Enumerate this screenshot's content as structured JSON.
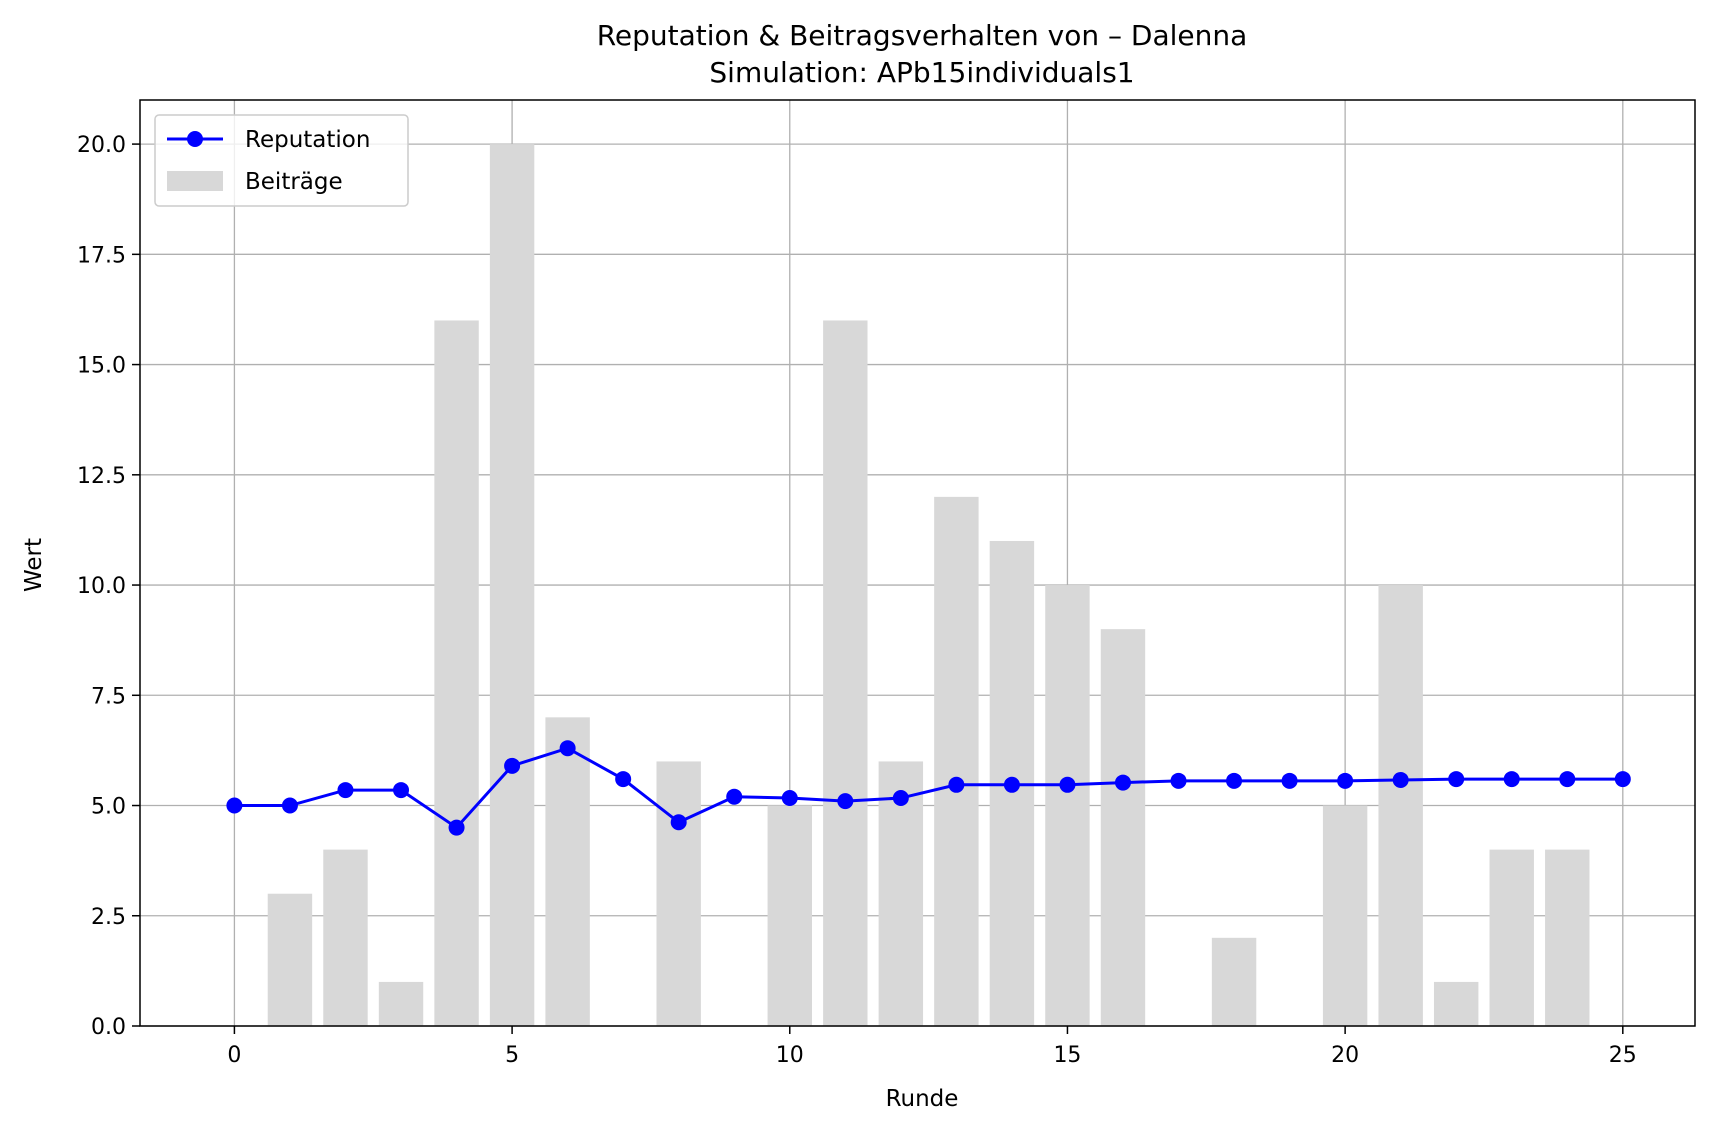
{
  "chart_data": {
    "type": "bar",
    "title": "Reputation & Beitragsverhalten von – Dalenna",
    "subtitle": "Simulation: APb15individuals1",
    "xlabel": "Runde",
    "ylabel": "Wert",
    "xlim": [
      -1.7,
      26.3
    ],
    "ylim": [
      0,
      21
    ],
    "xticks": [
      0,
      5,
      10,
      15,
      20,
      25
    ],
    "yticks": [
      0.0,
      2.5,
      5.0,
      7.5,
      10.0,
      12.5,
      15.0,
      17.5,
      20.0
    ],
    "xtick_labels": [
      "0",
      "5",
      "10",
      "15",
      "20",
      "25"
    ],
    "ytick_labels": [
      "0.0",
      "2.5",
      "5.0",
      "7.5",
      "10.0",
      "12.5",
      "15.0",
      "17.5",
      "20.0"
    ],
    "grid": true,
    "legend_position": "top-left",
    "series": [
      {
        "name": "Beiträge",
        "kind": "bar",
        "color": "#d8d8d8",
        "x": [
          1,
          2,
          3,
          4,
          5,
          6,
          8,
          10,
          11,
          12,
          13,
          14,
          15,
          16,
          18,
          20,
          21,
          22,
          23,
          24
        ],
        "values": [
          3,
          4,
          1,
          16,
          20,
          7,
          6,
          5,
          16,
          6,
          12,
          11,
          10,
          9,
          2,
          5,
          10,
          1,
          4,
          4
        ]
      },
      {
        "name": "Reputation",
        "kind": "line",
        "color": "#0000ff",
        "x": [
          0,
          1,
          2,
          3,
          4,
          5,
          6,
          7,
          8,
          9,
          10,
          11,
          12,
          13,
          14,
          15,
          16,
          17,
          18,
          19,
          20,
          21,
          22,
          23,
          24,
          25
        ],
        "values": [
          5.0,
          5.0,
          5.35,
          5.35,
          4.5,
          5.9,
          6.3,
          5.6,
          4.62,
          5.2,
          5.17,
          5.1,
          5.17,
          5.47,
          5.47,
          5.47,
          5.52,
          5.56,
          5.56,
          5.56,
          5.56,
          5.58,
          5.6,
          5.6,
          5.6,
          5.6
        ]
      }
    ]
  }
}
